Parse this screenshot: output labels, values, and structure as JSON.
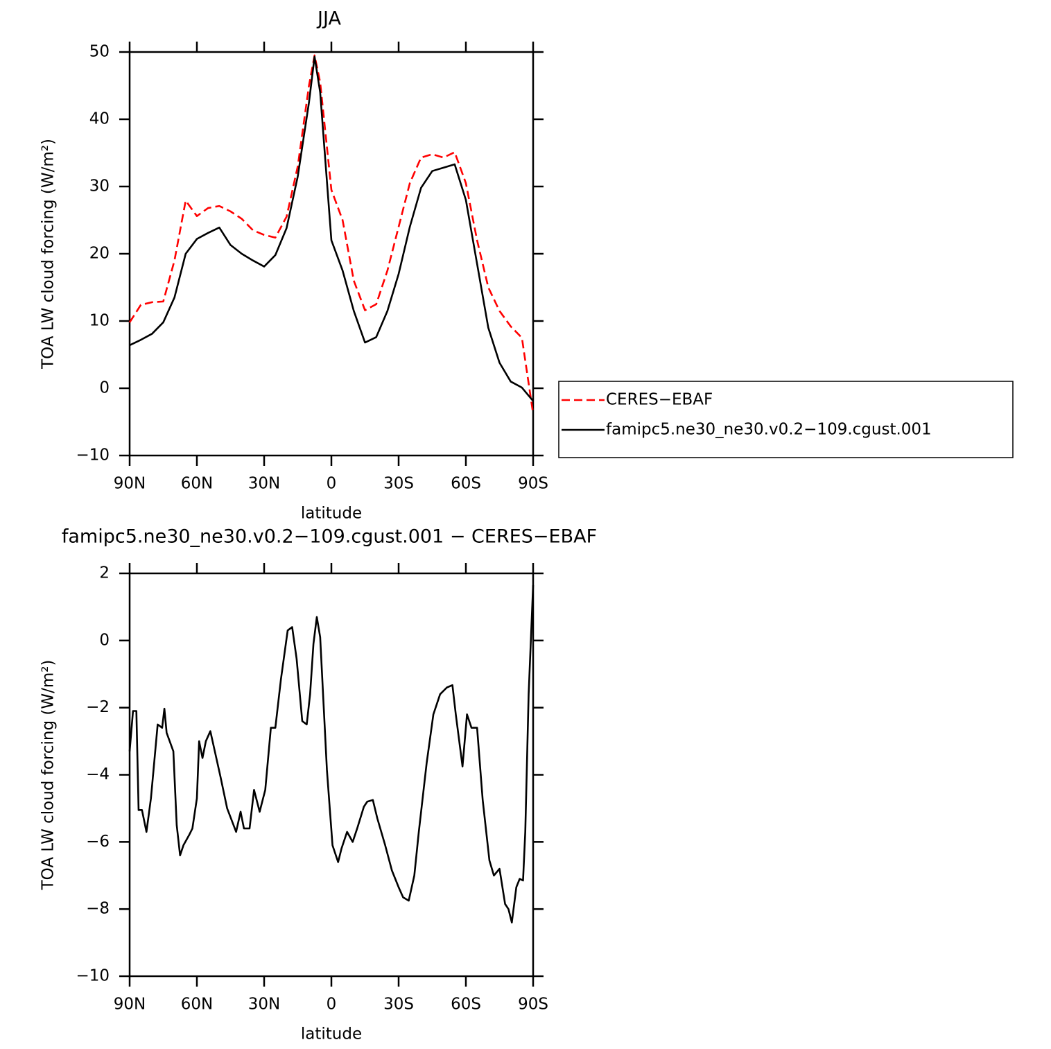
{
  "chart_data": [
    {
      "type": "line",
      "title": "JJA",
      "xlabel": "latitude",
      "ylabel": "TOA LW cloud forcing (W/m²)",
      "x": [
        90,
        85,
        80,
        75,
        70,
        65,
        60,
        55,
        50,
        45,
        40,
        35,
        30,
        25,
        20,
        15,
        10,
        7.5,
        5,
        0,
        -5,
        -10,
        -15,
        -20,
        -25,
        -30,
        -35,
        -40,
        -45,
        -50,
        -55,
        -60,
        -65,
        -70,
        -75,
        -80,
        -85,
        -90
      ],
      "series": [
        {
          "name": "CERES−EBAF",
          "color": "#ff0000",
          "line_style": "dashed",
          "values": [
            9.8,
            12.4,
            12.8,
            12.9,
            19,
            27.9,
            25.6,
            26.8,
            27.1,
            26.3,
            25.2,
            23.5,
            22.8,
            22.4,
            25.5,
            33,
            45,
            49.5,
            45.5,
            29.5,
            25,
            16,
            11.6,
            12.5,
            17.5,
            24,
            30.5,
            34.3,
            34.8,
            34.3,
            35.1,
            30.5,
            22,
            15,
            11.5,
            9.2,
            7.5,
            -3.8
          ]
        },
        {
          "name": "famipc5.ne30_ne30.v0.2−109.cgust.001",
          "color": "#000000",
          "line_style": "solid",
          "values": [
            6.4,
            7.2,
            8.1,
            9.8,
            13.5,
            20,
            22.2,
            23.1,
            23.9,
            21.3,
            20,
            19,
            18.1,
            19.8,
            23.8,
            31.5,
            42.5,
            49.3,
            44,
            22,
            17.5,
            11.5,
            6.8,
            7.6,
            11.5,
            17,
            24,
            29.8,
            32.3,
            32.8,
            33.3,
            28,
            18.5,
            9,
            3.8,
            1,
            0.1,
            -1.9
          ]
        }
      ],
      "xlim": [
        90,
        -90
      ],
      "xticks": [
        {
          "value": 90,
          "label": "90N"
        },
        {
          "value": 60,
          "label": "60N"
        },
        {
          "value": 30,
          "label": "30N"
        },
        0,
        {
          "value": -30,
          "label": "30S"
        },
        {
          "value": -60,
          "label": "60S"
        },
        {
          "value": -90,
          "label": "90S"
        }
      ],
      "ylim": [
        -10,
        50
      ],
      "yticks": [
        {
          "value": -10,
          "label": "−10"
        },
        0,
        10,
        20,
        30,
        40,
        50
      ],
      "legend": "outside-right"
    },
    {
      "type": "line",
      "title": "famipc5.ne30_ne30.v0.2−109.cgust.001 − CERES−EBAF",
      "xlabel": "latitude",
      "ylabel": "TOA LW cloud forcing (W/m²)",
      "x": [
        90,
        88.5,
        87,
        86,
        84.5,
        82.5,
        80.5,
        77.5,
        75.5,
        74.5,
        73.5,
        70.5,
        69,
        67.5,
        66,
        63.5,
        62,
        60,
        59,
        57.5,
        56,
        54,
        52,
        49.5,
        46.5,
        42.5,
        40.5,
        39,
        36.5,
        34.5,
        32,
        29.5,
        27,
        25,
        22.5,
        19.5,
        17.5,
        15.5,
        13,
        11,
        9.5,
        8,
        6.5,
        5,
        2,
        -0.5,
        -3,
        -4.5,
        -7,
        -9.5,
        -11.5,
        -14.5,
        -16,
        -18.5,
        -20.5,
        -24,
        -27,
        -30,
        -32,
        -34.5,
        -37,
        -39,
        -42.5,
        -45.5,
        -48.5,
        -51.5,
        -54,
        -55.5,
        -58.5,
        -60.5,
        -62.5,
        -65,
        -67.5,
        -70.5,
        -72.5,
        -75,
        -77.5,
        -79,
        -80.5,
        -82.5,
        -84,
        -85.5,
        -86.5,
        -88,
        -90
      ],
      "series": [
        {
          "color": "#000000",
          "line_style": "solid",
          "values": [
            -3.3,
            -2.1,
            -2.1,
            -5.05,
            -5.05,
            -5.7,
            -4.7,
            -2.5,
            -2.6,
            -2.03,
            -2.75,
            -3.3,
            -5.5,
            -6.4,
            -6.1,
            -5.8,
            -5.6,
            -4.7,
            -3,
            -3.5,
            -3,
            -2.7,
            -3.3,
            -4.05,
            -5,
            -5.7,
            -5.1,
            -5.6,
            -5.6,
            -4.45,
            -5.1,
            -4.45,
            -2.6,
            -2.6,
            -1.15,
            0.3,
            0.4,
            -0.55,
            -2.4,
            -2.5,
            -1.6,
            -0.1,
            0.7,
            0.1,
            -3.85,
            -6.1,
            -6.6,
            -6.2,
            -5.7,
            -6,
            -5.6,
            -4.95,
            -4.8,
            -4.75,
            -5.3,
            -6.1,
            -6.85,
            -7.35,
            -7.65,
            -7.75,
            -7,
            -5.7,
            -3.65,
            -2.2,
            -1.6,
            -1.4,
            -1.33,
            -2.2,
            -3.75,
            -2.2,
            -2.6,
            -2.6,
            -4.75,
            -6.55,
            -7,
            -6.8,
            -7.85,
            -8,
            -8.4,
            -7.35,
            -7.1,
            -7.15,
            -5.7,
            -1.6,
            1.65
          ]
        }
      ],
      "xlim": [
        90,
        -90
      ],
      "xticks": [
        {
          "value": 90,
          "label": "90N"
        },
        {
          "value": 60,
          "label": "60N"
        },
        {
          "value": 30,
          "label": "30N"
        },
        0,
        {
          "value": -30,
          "label": "30S"
        },
        {
          "value": -60,
          "label": "60S"
        },
        {
          "value": -90,
          "label": "90S"
        }
      ],
      "ylim": [
        -10,
        2
      ],
      "yticks": [
        {
          "value": -10,
          "label": "−10"
        },
        {
          "value": -8,
          "label": "−8"
        },
        {
          "value": -6,
          "label": "−6"
        },
        {
          "value": -4,
          "label": "−4"
        },
        {
          "value": -2,
          "label": "−2"
        },
        0,
        2
      ]
    }
  ]
}
